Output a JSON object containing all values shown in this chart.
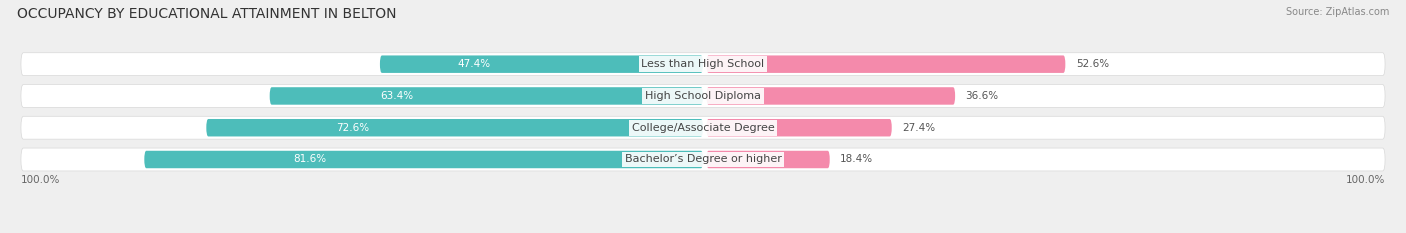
{
  "title": "OCCUPANCY BY EDUCATIONAL ATTAINMENT IN BELTON",
  "source": "Source: ZipAtlas.com",
  "categories": [
    "Less than High School",
    "High School Diploma",
    "College/Associate Degree",
    "Bachelor’s Degree or higher"
  ],
  "owner_values": [
    47.4,
    63.4,
    72.6,
    81.6
  ],
  "renter_values": [
    52.6,
    36.6,
    27.4,
    18.4
  ],
  "owner_color": "#4dbdba",
  "renter_color": "#f48aab",
  "background_color": "#efefef",
  "row_bg_color": "#ffffff",
  "row_shadow_color": "#d8d8d8",
  "title_fontsize": 10,
  "label_fontsize": 8,
  "pct_fontsize": 7.5,
  "legend_fontsize": 8,
  "axis_label": "100.0%"
}
